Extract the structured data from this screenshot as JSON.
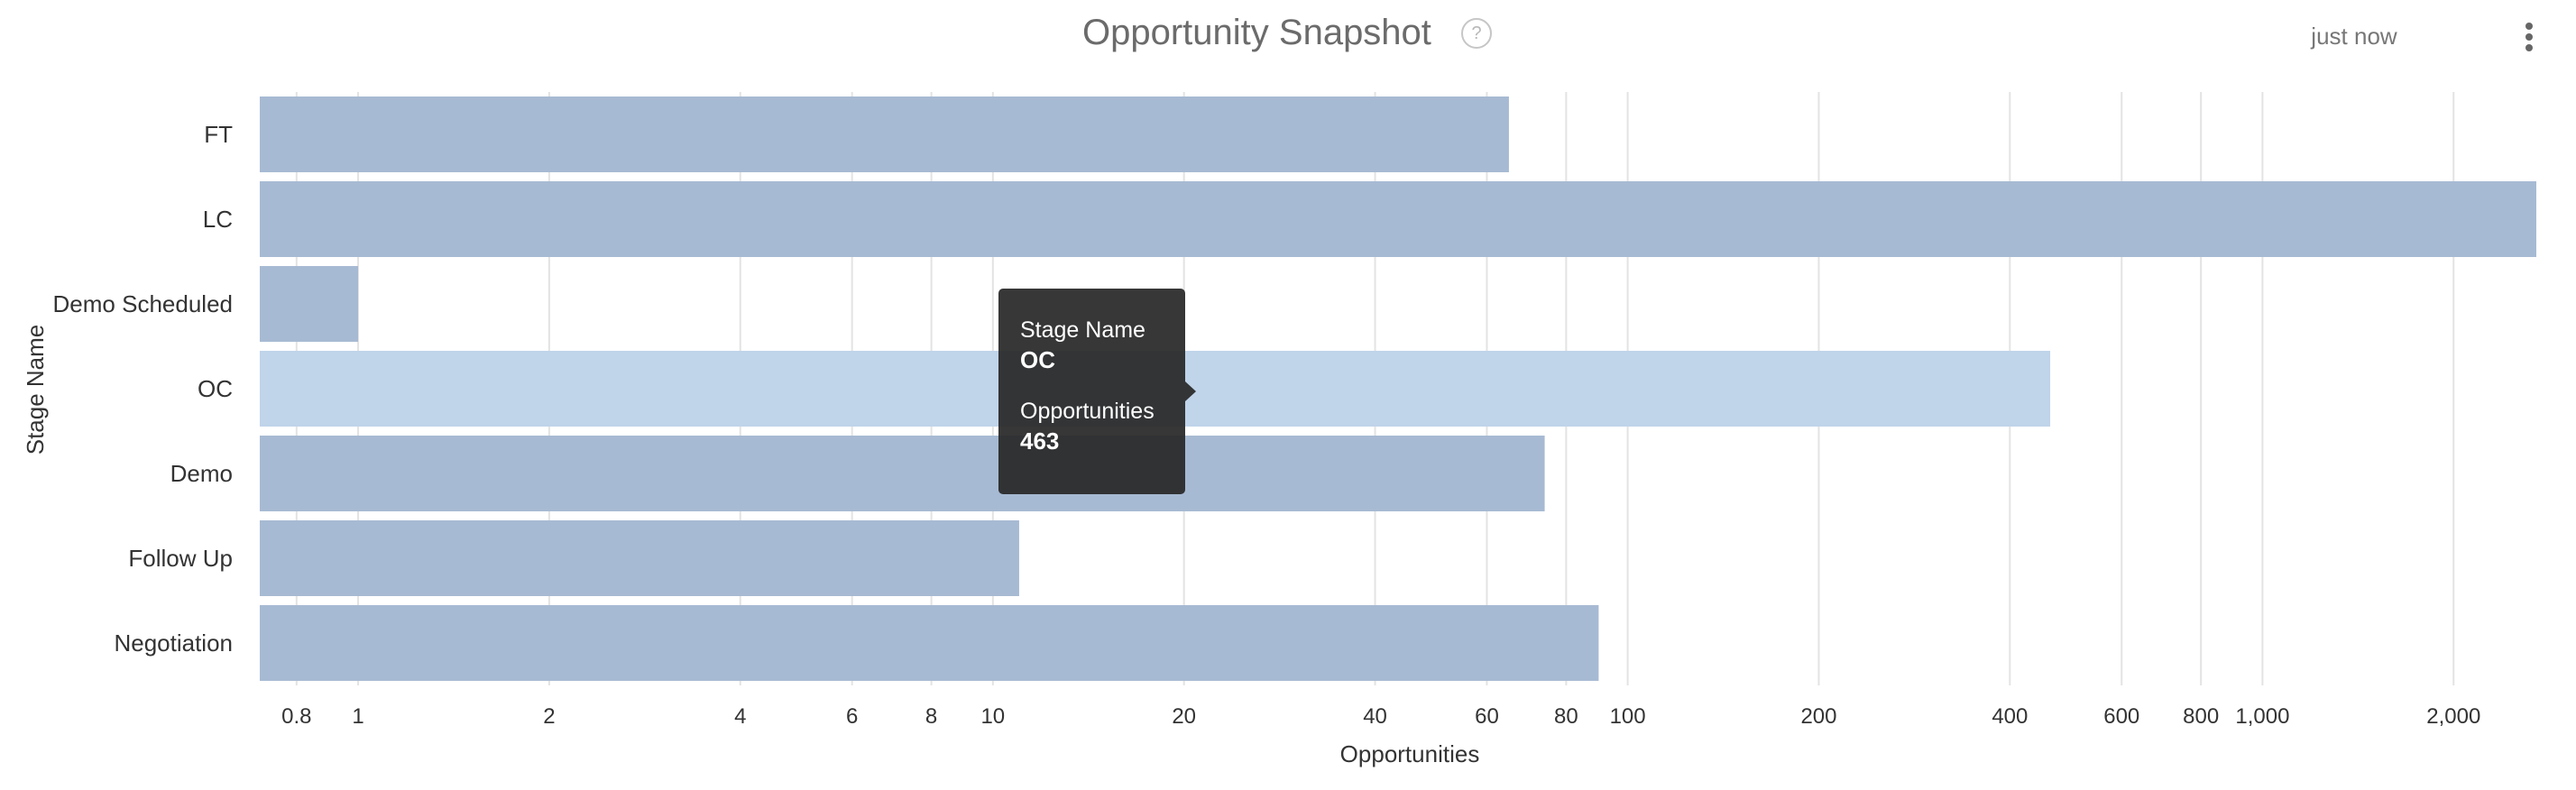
{
  "header": {
    "title": "Opportunity Snapshot",
    "help_icon": "question-circle-icon",
    "help_glyph": "?",
    "timestamp": "just now",
    "menu_icon": "vertical-ellipsis-icon"
  },
  "tooltip": {
    "category_label": "Stage Name",
    "category_value": "OC",
    "metric_label": "Opportunities",
    "metric_value": "463"
  },
  "colors": {
    "bar": "#a7bad3",
    "bar_highlight": "#c0d4ea",
    "grid": "#e3e3e3"
  },
  "chart_data": {
    "type": "bar",
    "orientation": "horizontal",
    "xscale": "log",
    "xlabel": "Opportunities",
    "ylabel": "Stage Name",
    "categories": [
      "FT",
      "LC",
      "Demo Scheduled",
      "OC",
      "Demo",
      "Follow Up",
      "Negotiation"
    ],
    "values": [
      65,
      2700,
      1,
      463,
      74,
      11,
      90
    ],
    "highlighted": "OC",
    "xlim": [
      0.7,
      2700
    ],
    "xticks": [
      0.8,
      1,
      2,
      4,
      6,
      8,
      10,
      20,
      40,
      60,
      80,
      100,
      200,
      400,
      600,
      800,
      1000,
      2000
    ],
    "xtick_labels": [
      "0.8",
      "1",
      "2",
      "4",
      "6",
      "8",
      "10",
      "20",
      "40",
      "60",
      "80",
      "100",
      "200",
      "400",
      "600",
      "800",
      "1,000",
      "2,000"
    ],
    "grid": true,
    "legend": "none"
  }
}
